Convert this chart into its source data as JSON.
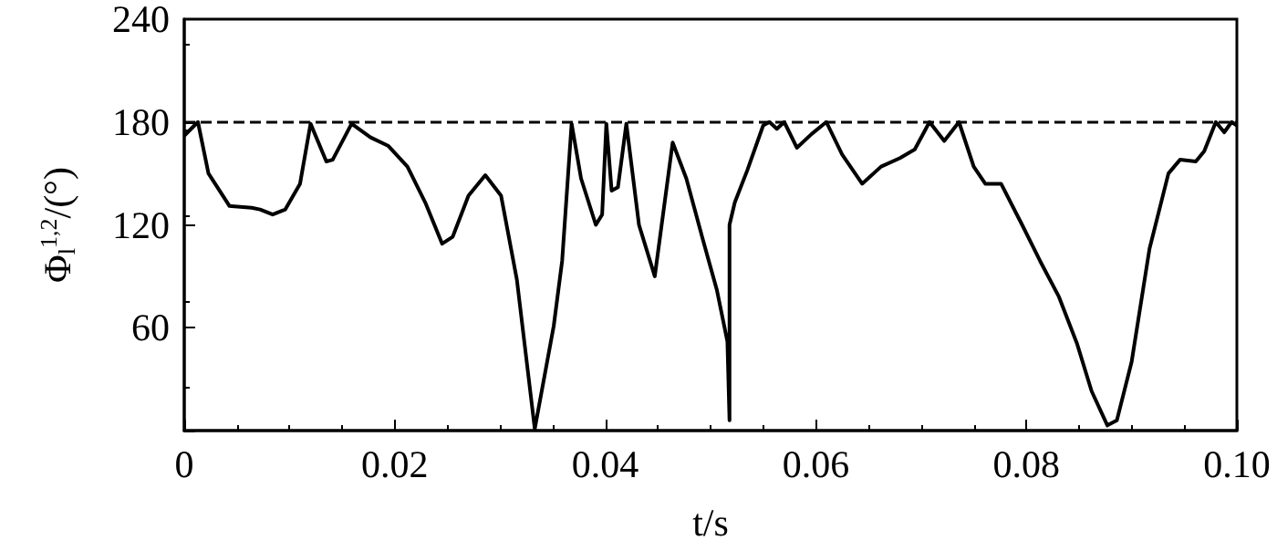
{
  "chart_data": {
    "type": "line",
    "xlabel": "t/s",
    "ylabel": "Φ$_{l}$$^{1,2}$/(°)",
    "xlim": [
      0,
      0.1
    ],
    "xticks": [
      0,
      0.02,
      0.04,
      0.06,
      0.08,
      {
        "value": 0.1,
        "label": "0.10"
      }
    ],
    "ylim": [
      0,
      240
    ],
    "yticks": [
      {
        "value": 0,
        "label": null
      },
      60,
      120,
      180,
      240
    ],
    "marker": "none",
    "line_style": "solid",
    "ref_lines": [
      {
        "axis": "y",
        "value": 180,
        "label": null,
        "line_style": "dashed",
        "color": "#000000"
      }
    ],
    "series": [
      {
        "color": "#000000",
        "x": [
          0,
          0.0013,
          0.0023,
          0.0043,
          0.0064,
          0.0072,
          0.0084,
          0.0096,
          0.011,
          0.012,
          0.0135,
          0.0141,
          0.0159,
          0.0177,
          0.0194,
          0.0212,
          0.0229,
          0.0245,
          0.0255,
          0.027,
          0.0286,
          0.0301,
          0.0316,
          0.0333,
          0.0351,
          0.0359,
          0.0368,
          0.0377,
          0.0391,
          0.0397,
          0.0401,
          0.0406,
          0.0412,
          0.042,
          0.0432,
          0.0447,
          0.0464,
          0.0477,
          0.0492,
          0.0506,
          0.0516,
          0.0518,
          0.0518,
          0.0523,
          0.0535,
          0.055,
          0.0556,
          0.0563,
          0.057,
          0.0582,
          0.0596,
          0.061,
          0.0625,
          0.0644,
          0.0662,
          0.068,
          0.0694,
          0.0708,
          0.0722,
          0.0736,
          0.075,
          0.0761,
          0.0776,
          0.0796,
          0.0813,
          0.0831,
          0.0848,
          0.0862,
          0.0877,
          0.0886,
          0.09,
          0.0917,
          0.0935,
          0.0946,
          0.0961,
          0.0969,
          0.098,
          0.0988,
          0.0995,
          0.1
        ],
        "values": [
          172,
          180,
          150,
          131,
          130,
          129,
          126,
          129,
          144,
          179,
          157,
          158,
          179,
          171,
          166,
          154,
          133,
          109,
          113,
          137,
          149,
          137,
          88,
          1,
          61,
          99,
          179,
          147,
          120,
          126,
          179,
          140,
          142,
          179,
          120,
          90,
          168,
          147,
          113,
          82,
          52,
          6,
          120,
          133,
          152,
          178,
          180,
          176,
          180,
          165,
          173,
          180,
          161,
          144,
          154,
          159,
          164,
          180,
          169,
          180,
          154,
          144,
          144,
          120,
          99,
          78,
          51,
          23,
          3,
          6,
          40,
          106,
          150,
          158,
          157,
          163,
          180,
          174,
          180,
          178
        ]
      }
    ]
  }
}
